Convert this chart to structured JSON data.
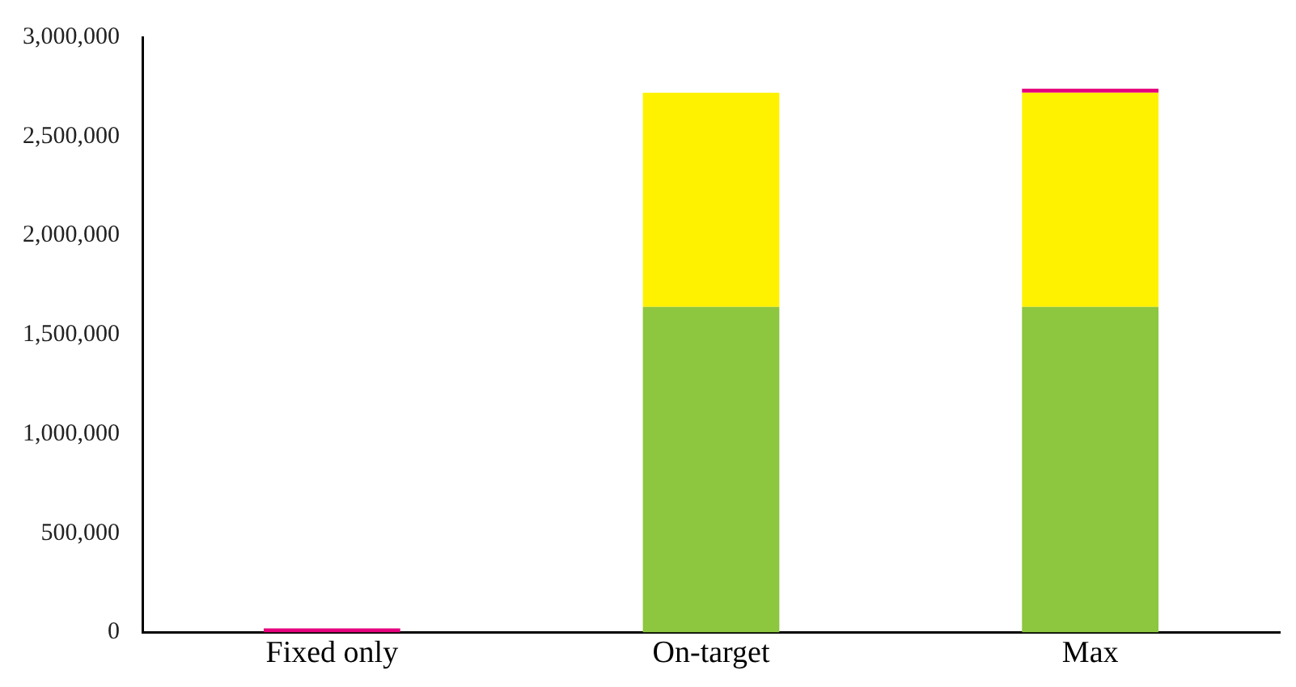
{
  "chart_data": {
    "type": "bar",
    "stacked": true,
    "categories": [
      "Fixed only",
      "On-target",
      "Max"
    ],
    "series": [
      {
        "color": "#8dc63f",
        "values": [
          0,
          1640000,
          1640000
        ]
      },
      {
        "color": "#fff200",
        "values": [
          0,
          1080000,
          1080000
        ]
      },
      {
        "color": "#e6007e",
        "values": [
          20000,
          0,
          20000
        ]
      }
    ],
    "ylim": [
      0,
      3000000
    ],
    "yticks": [
      0,
      {
        "value": 500000,
        "label": "500,000"
      },
      {
        "value": 1000000,
        "label": "1,000,000"
      },
      {
        "value": 1500000,
        "label": "1,500,000"
      },
      {
        "value": 2000000,
        "label": "2,000,000"
      },
      {
        "value": 2500000,
        "label": "2,500,000"
      },
      {
        "value": 3000000,
        "label": "3,000,000"
      }
    ],
    "grid": false,
    "legend": false
  }
}
